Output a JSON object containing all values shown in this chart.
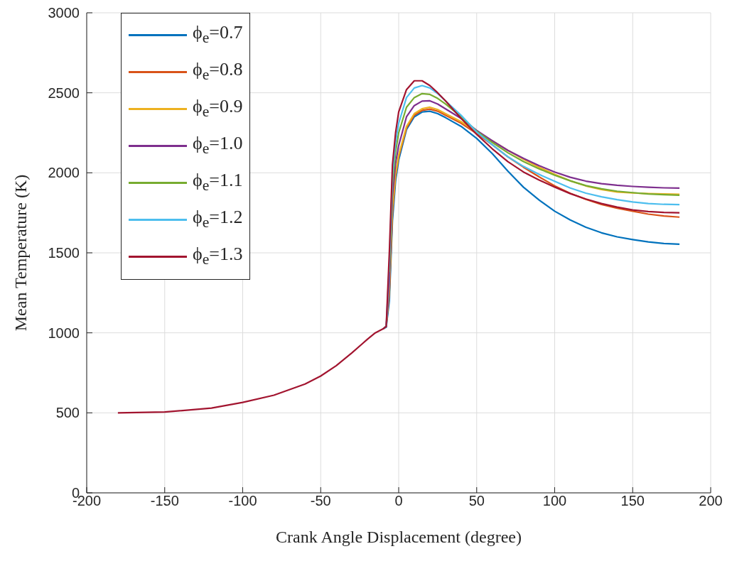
{
  "chart_data": {
    "type": "line",
    "xlabel": "Crank Angle Displacement (degree)",
    "ylabel": "Mean Temperature (K)",
    "x": [
      -180,
      -150,
      -120,
      -100,
      -80,
      -60,
      -50,
      -40,
      -30,
      -20,
      -15,
      -10,
      -8,
      -6,
      -4,
      -2,
      0,
      5,
      10,
      15,
      20,
      25,
      30,
      40,
      50,
      60,
      70,
      80,
      90,
      100,
      110,
      120,
      130,
      140,
      150,
      160,
      170,
      180
    ],
    "series": [
      {
        "name": "ϕ$_{e}$=0.7",
        "color": "#0072bd",
        "values": [
          null,
          null,
          null,
          null,
          null,
          null,
          null,
          null,
          null,
          null,
          null,
          1025,
          1035,
          1200,
          1700,
          1950,
          2080,
          2270,
          2350,
          2380,
          2385,
          2370,
          2345,
          2290,
          2215,
          2120,
          2010,
          1910,
          1830,
          1760,
          1705,
          1660,
          1625,
          1600,
          1583,
          1568,
          1558,
          1554
        ]
      },
      {
        "name": "ϕ$_{e}$=0.8",
        "color": "#d95319",
        "values": [
          null,
          null,
          null,
          null,
          null,
          null,
          null,
          null,
          null,
          null,
          null,
          1025,
          1040,
          1250,
          1750,
          1980,
          2100,
          2280,
          2360,
          2390,
          2398,
          2385,
          2360,
          2310,
          2245,
          2175,
          2100,
          2035,
          1975,
          1918,
          1872,
          1834,
          1802,
          1779,
          1760,
          1742,
          1730,
          1723
        ]
      },
      {
        "name": "ϕ$_{e}$=0.9",
        "color": "#edb120",
        "values": [
          null,
          null,
          null,
          null,
          null,
          null,
          null,
          null,
          null,
          null,
          null,
          1025,
          1040,
          1270,
          1770,
          1990,
          2110,
          2290,
          2370,
          2400,
          2410,
          2395,
          2370,
          2320,
          2255,
          2200,
          2140,
          2085,
          2035,
          1990,
          1950,
          1918,
          1895,
          1880,
          1874,
          1870,
          1868,
          1866
        ]
      },
      {
        "name": "ϕ$_{e}$=1.0",
        "color": "#7e2f8e",
        "values": [
          null,
          null,
          null,
          null,
          null,
          null,
          null,
          null,
          null,
          null,
          null,
          1025,
          1040,
          1320,
          1850,
          2060,
          2170,
          2350,
          2420,
          2448,
          2450,
          2430,
          2400,
          2340,
          2265,
          2200,
          2140,
          2090,
          2045,
          2005,
          1972,
          1948,
          1932,
          1922,
          1915,
          1910,
          1906,
          1904
        ]
      },
      {
        "name": "ϕ$_{e}$=1.1",
        "color": "#77ac30",
        "values": [
          null,
          null,
          null,
          null,
          null,
          null,
          null,
          null,
          null,
          null,
          null,
          null,
          null,
          1380,
          1930,
          2130,
          2250,
          2410,
          2470,
          2495,
          2490,
          2465,
          2430,
          2350,
          2260,
          2190,
          2125,
          2070,
          2025,
          1985,
          1950,
          1920,
          1900,
          1885,
          1876,
          1868,
          1863,
          1860
        ]
      },
      {
        "name": "ϕ$_{e}$=1.2",
        "color": "#4dbeee",
        "values": [
          null,
          null,
          null,
          null,
          null,
          null,
          null,
          null,
          null,
          null,
          null,
          1025,
          1040,
          1430,
          1990,
          2190,
          2310,
          2470,
          2530,
          2545,
          2530,
          2495,
          2450,
          2360,
          2255,
          2175,
          2100,
          2040,
          1990,
          1947,
          1905,
          1873,
          1850,
          1832,
          1818,
          1808,
          1803,
          1801
        ]
      },
      {
        "name": "ϕ$_{e}$=1.3",
        "color": "#a2142f",
        "values": [
          500,
          505,
          530,
          565,
          610,
          680,
          730,
          795,
          875,
          960,
          1000,
          1025,
          1040,
          1500,
          2050,
          2250,
          2380,
          2520,
          2575,
          2575,
          2545,
          2500,
          2450,
          2340,
          2240,
          2150,
          2070,
          2005,
          1955,
          1911,
          1870,
          1836,
          1808,
          1786,
          1768,
          1758,
          1752,
          1750
        ]
      }
    ],
    "xlim": [
      -200,
      200
    ],
    "xticks": [
      -200,
      -150,
      -100,
      -50,
      0,
      50,
      100,
      150,
      200
    ],
    "ylim": [
      0,
      3000
    ],
    "yticks": [
      0,
      500,
      1000,
      1500,
      2000,
      2500,
      3000
    ],
    "grid": true,
    "legend": "top left"
  }
}
